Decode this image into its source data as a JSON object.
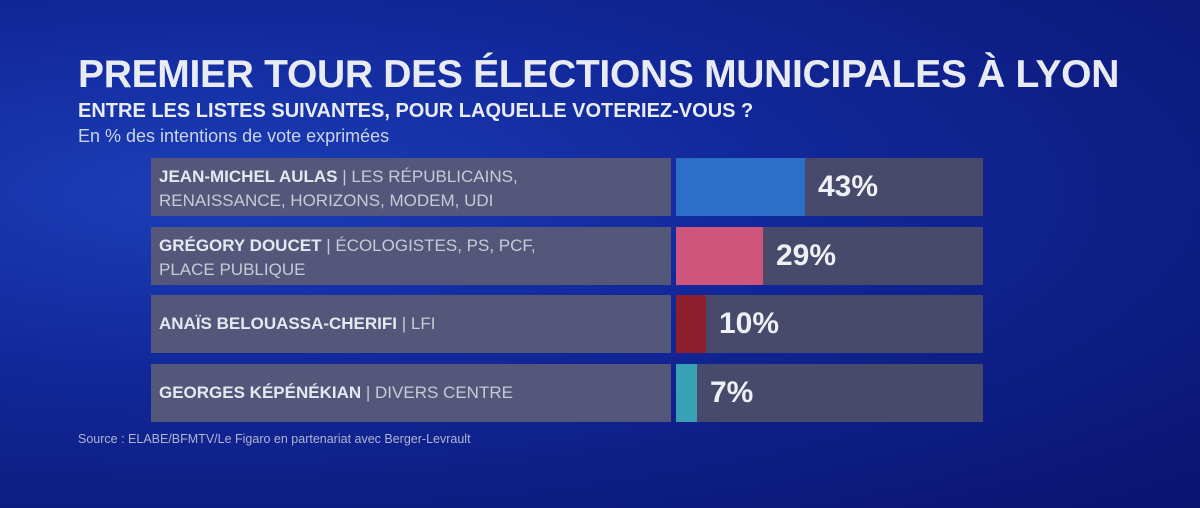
{
  "header": {
    "title": "PREMIER TOUR DES ÉLECTIONS MUNICIPALES À LYON",
    "subtitle": "ENTRE LES LISTES SUIVANTES, POUR LAQUELLE VOTERIEZ-VOUS ?",
    "note": "En % des intentions de vote exprimées"
  },
  "source": "Source : ELABE/BFMTV/Le Figaro en partenariat avec Berger-Levrault",
  "chart_data": {
    "type": "bar",
    "orientation": "horizontal",
    "title": "PREMIER TOUR DES ÉLECTIONS MUNICIPALES À LYON",
    "subtitle": "ENTRE LES LISTES SUIVANTES, POUR LAQUELLE VOTERIEZ-VOUS ?",
    "xlabel": "",
    "ylabel": "",
    "unit": "%",
    "grid": false,
    "legend": "none",
    "categories": [
      "JEAN-MICHEL AULAS",
      "GRÉGORY DOUCET",
      "ANAÏS BELOUASSA-CHERIFI",
      "GEORGES KÉPÉNÉKIAN"
    ],
    "values": [
      43,
      29,
      10,
      7
    ],
    "value_labels": [
      "43%",
      "29%",
      "10%",
      "7%"
    ],
    "parties_line1": [
      "| LES RÉPUBLICAINS,",
      "| ÉCOLOGISTES, PS, PCF,",
      "| LFI",
      "| DIVERS CENTRE"
    ],
    "parties_line2": [
      "RENAISSANCE, HORIZONS, MODEM, UDI",
      "PLACE PUBLIQUE",
      "",
      ""
    ],
    "colors": [
      "#2c6fc9",
      "#d0557c",
      "#8c1f2b",
      "#3aa0b6"
    ]
  }
}
